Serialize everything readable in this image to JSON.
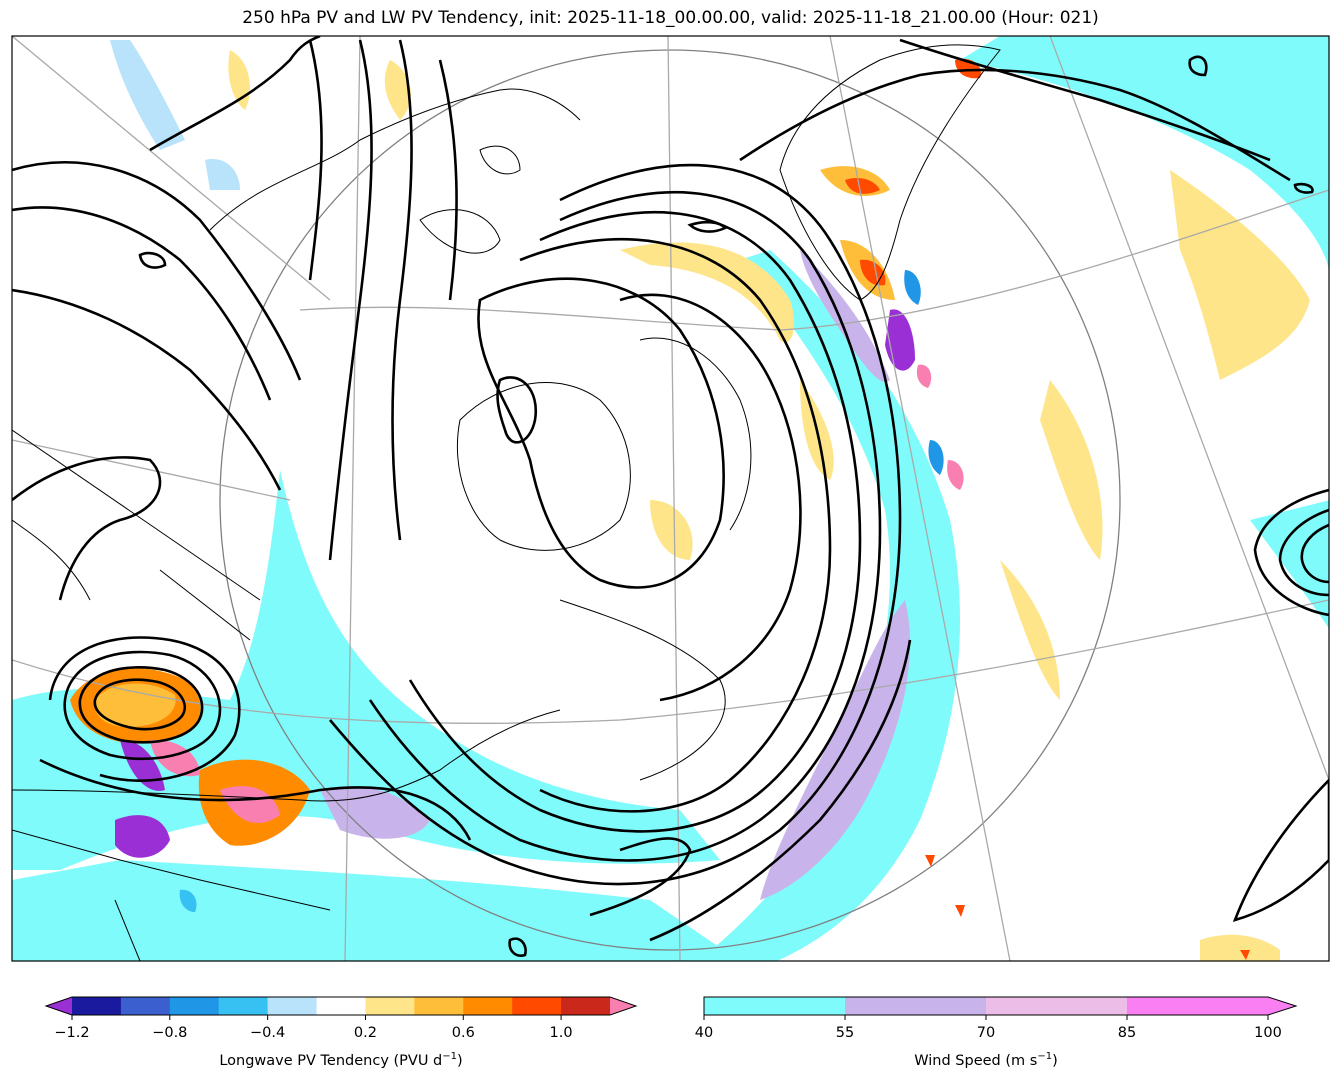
{
  "title": "250 hPa PV and LW PV Tendency, init: 2025-11-18_00.00.00, valid: 2025-11-18_21.00.00 (Hour: 021)",
  "colorbars": {
    "pv_tendency": {
      "label": "Longwave PV Tendency (PVU d",
      "label_sup": "−1",
      "label_end": ")",
      "ticks": [
        "−1.2",
        "−0.8",
        "−0.4",
        "0.2",
        "0.6",
        "1.0"
      ],
      "colors": [
        "#1a1a9e",
        "#3b5fcf",
        "#1f97e6",
        "#37c1f2",
        "#b8e3fb",
        "#ffffff",
        "#ffe58a",
        "#ffbe3a",
        "#ff8c00",
        "#ff4a00",
        "#c9281a"
      ],
      "under_color": "#9b2fd6",
      "over_color": "#f87fb0"
    },
    "wind_speed": {
      "label": "Wind Speed (m s",
      "label_sup": "−1",
      "label_end": ")",
      "ticks": [
        "40",
        "55",
        "70",
        "85",
        "100"
      ],
      "colors": [
        "#80fbfb",
        "#c8b4ea",
        "#ecbde6",
        "#fa7ff2"
      ],
      "over_color": "#fa7ff2"
    }
  }
}
